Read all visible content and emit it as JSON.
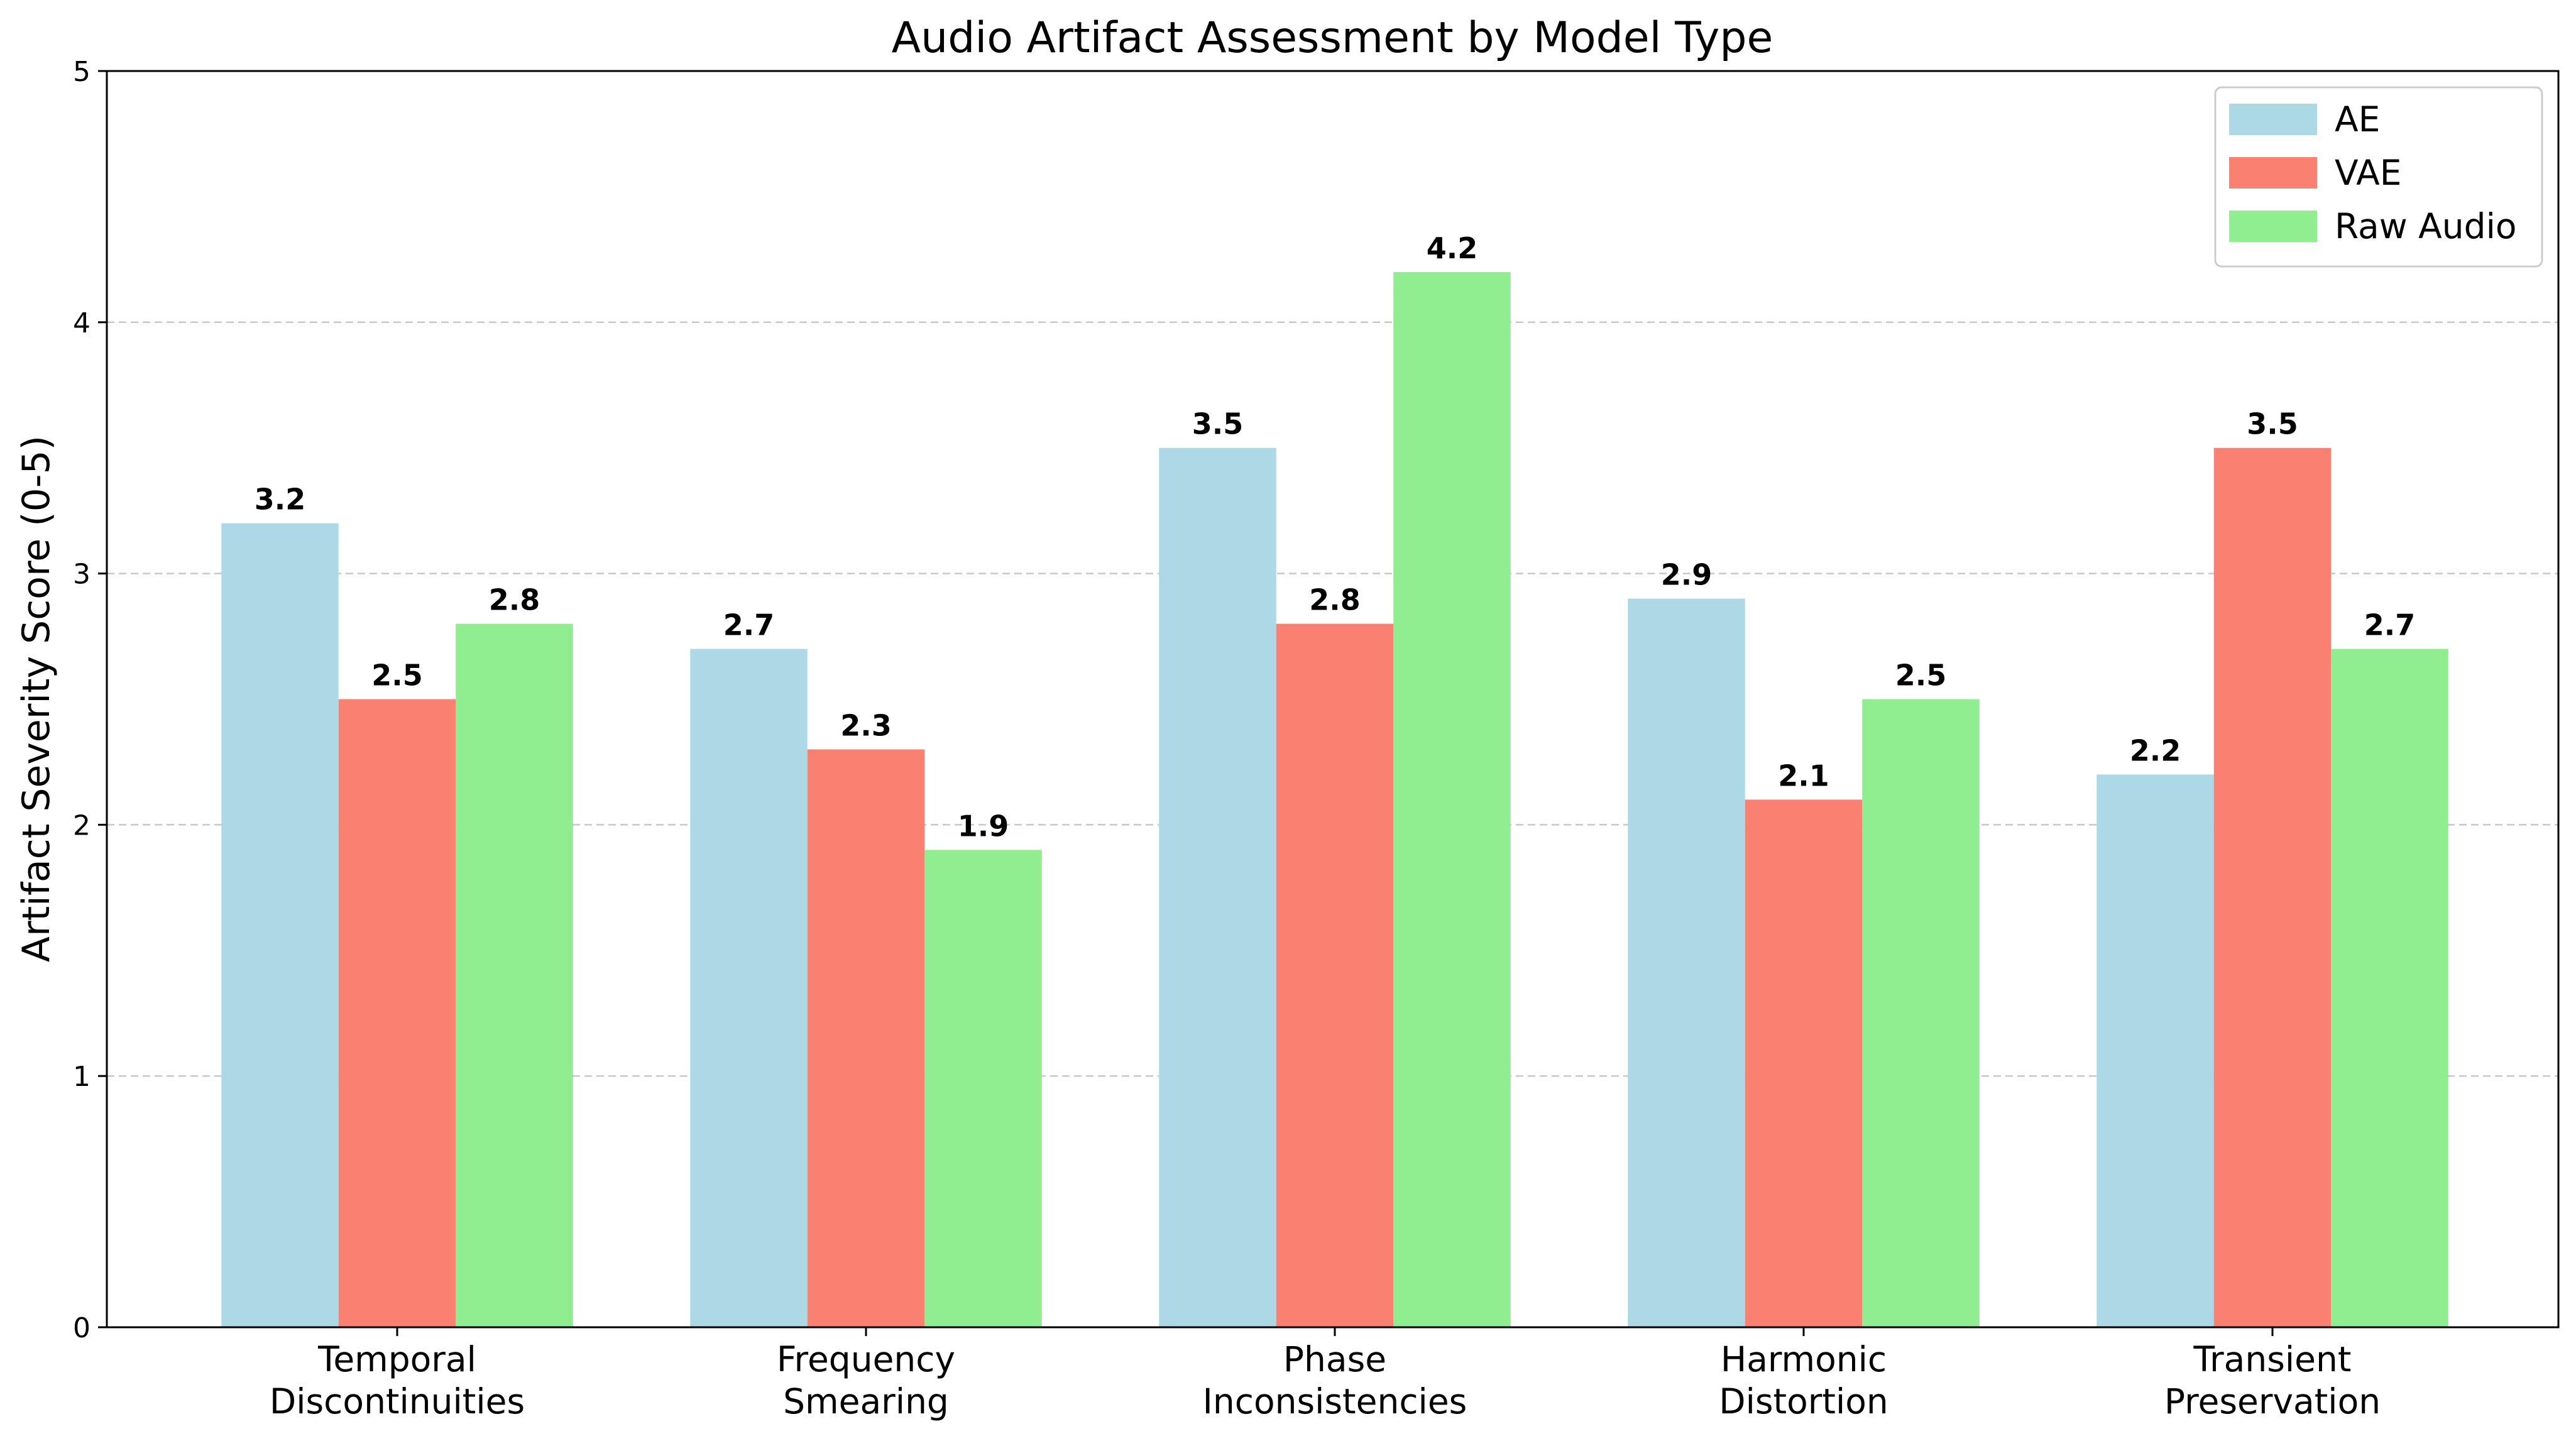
{
  "chart_data": {
    "type": "bar",
    "title": "Audio Artifact Assessment by Model Type",
    "xlabel": "",
    "ylabel": "Artifact Severity Score (0-5)",
    "ylim": [
      0,
      5
    ],
    "yticks": [
      0,
      1,
      2,
      3,
      4,
      5
    ],
    "grid": "y-dashed",
    "legend_position": "top-right",
    "categories": [
      [
        "Temporal",
        "Discontinuities"
      ],
      [
        "Frequency",
        "Smearing"
      ],
      [
        "Phase",
        "Inconsistencies"
      ],
      [
        "Harmonic",
        "Distortion"
      ],
      [
        "Transient",
        "Preservation"
      ]
    ],
    "series": [
      {
        "name": "AE",
        "color": "#add8e6",
        "values": [
          3.2,
          2.7,
          3.5,
          2.9,
          2.2
        ]
      },
      {
        "name": "VAE",
        "color": "#fa8072",
        "values": [
          2.5,
          2.3,
          2.8,
          2.1,
          3.5
        ]
      },
      {
        "name": "Raw Audio",
        "color": "#90ee90",
        "values": [
          2.8,
          1.9,
          4.2,
          2.5,
          2.7
        ]
      }
    ]
  }
}
